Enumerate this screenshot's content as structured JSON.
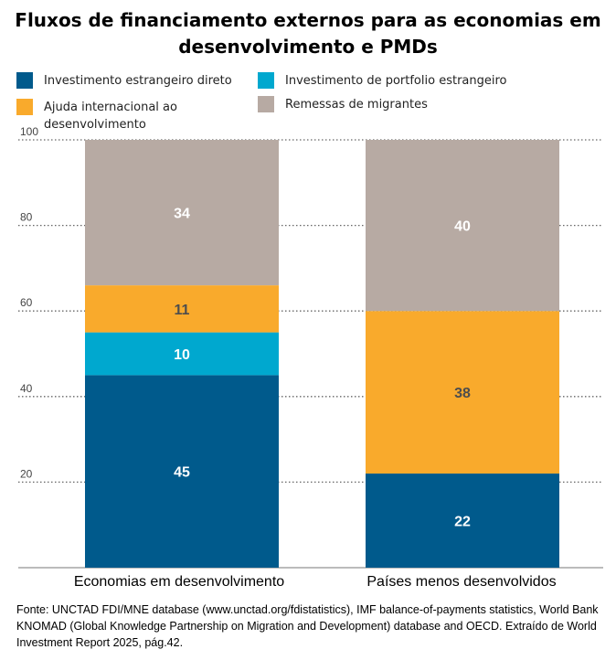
{
  "title_line1": "Fluxos de financiamento externos para as economias em",
  "title_line2": "desenvolvimento e PMDs",
  "legend": [
    {
      "label": "Investimento estrangeiro direto",
      "color": "#005a8c"
    },
    {
      "label": "Investimento de portfolio estrangeiro",
      "color": "#00a8cf"
    },
    {
      "label": "Ajuda internacional ao desenvolvimento",
      "color": "#f9aa2c"
    },
    {
      "label": "Remessas de migrantes",
      "color": "#b7aaa3"
    }
  ],
  "source": "Fonte: UNCTAD FDI/MNE database (www.unctad.org/fdistatistics), IMF balance-of-payments statistics, World Bank KNOMAD (Global Knowledge Partnership on Migration and Development) database and OECD. Extraído de World Investment Report 2025, pág.42.",
  "chart_data": {
    "type": "bar",
    "stacked": true,
    "categories": [
      "Economias em desenvolvimento",
      "Países menos desenvolvidos"
    ],
    "series": [
      {
        "name": "Investimento estrangeiro direto",
        "values": [
          45,
          22
        ],
        "color": "#005a8c",
        "label_color": "#ffffff"
      },
      {
        "name": "Investimento de portfolio estrangeiro",
        "values": [
          10,
          0
        ],
        "color": "#00a8cf",
        "label_color": "#ffffff"
      },
      {
        "name": "Ajuda internacional ao desenvolvimento",
        "values": [
          11,
          38
        ],
        "color": "#f9aa2c",
        "label_color": "#4d4d4d"
      },
      {
        "name": "Remessas de migrantes",
        "values": [
          34,
          40
        ],
        "color": "#b7aaa3",
        "label_color": "#ffffff"
      }
    ],
    "yticks": [
      "20",
      "40",
      "60",
      "80",
      "100"
    ],
    "ylim": [
      0,
      100
    ],
    "grid": true,
    "legend_position": "top"
  }
}
